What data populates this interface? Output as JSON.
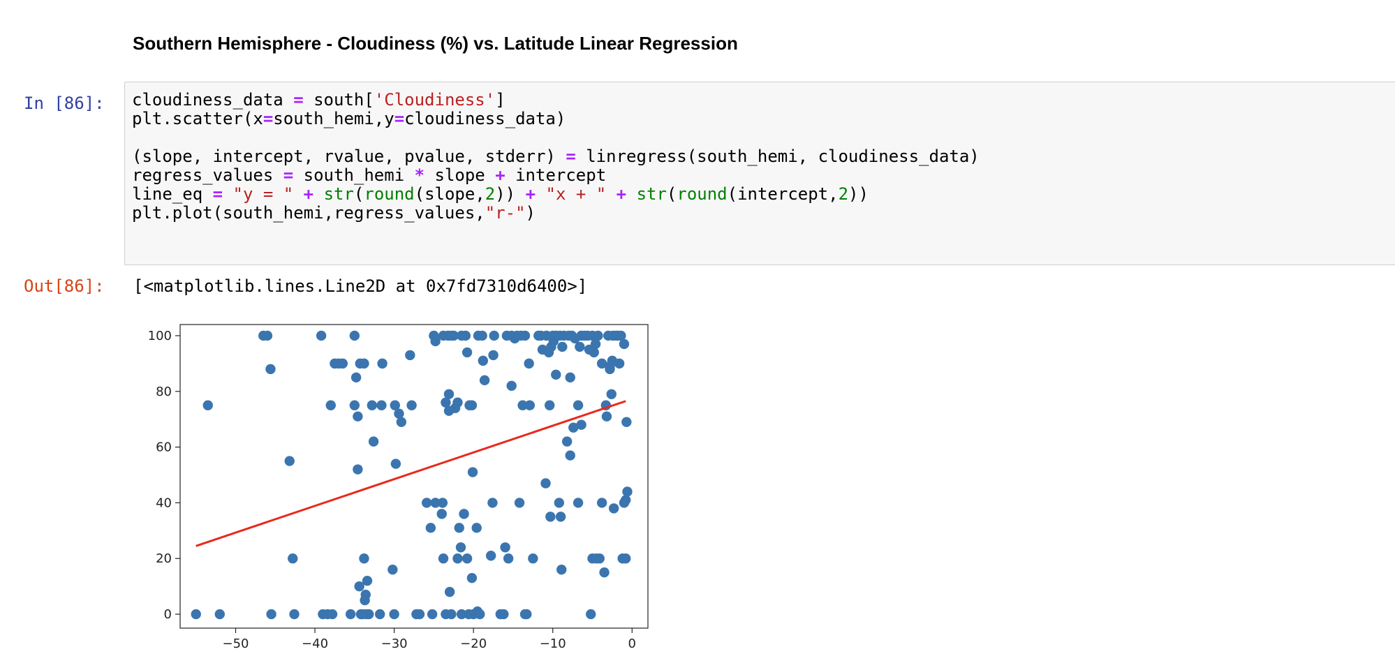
{
  "markdown": {
    "heading": "Southern Hemisphere - Cloudiness (%) vs. Latitude Linear Regression"
  },
  "input_cell": {
    "prompt": "In [86]:",
    "lines": [
      [
        {
          "t": "cloudiness_data ",
          "c": ""
        },
        {
          "t": "=",
          "c": "op"
        },
        {
          "t": " south[",
          "c": ""
        },
        {
          "t": "'Cloudiness'",
          "c": "str"
        },
        {
          "t": "]",
          "c": ""
        }
      ],
      [
        {
          "t": "plt.scatter(x",
          "c": ""
        },
        {
          "t": "=",
          "c": "op"
        },
        {
          "t": "south_hemi,y",
          "c": ""
        },
        {
          "t": "=",
          "c": "op"
        },
        {
          "t": "cloudiness_data)",
          "c": ""
        }
      ],
      [],
      [
        {
          "t": "(slope, intercept, rvalue, pvalue, stderr) ",
          "c": ""
        },
        {
          "t": "=",
          "c": "op"
        },
        {
          "t": " linregress(south_hemi, cloudiness_data)",
          "c": ""
        }
      ],
      [
        {
          "t": "regress_values ",
          "c": ""
        },
        {
          "t": "=",
          "c": "op"
        },
        {
          "t": " south_hemi ",
          "c": ""
        },
        {
          "t": "*",
          "c": "op"
        },
        {
          "t": " slope ",
          "c": ""
        },
        {
          "t": "+",
          "c": "op"
        },
        {
          "t": " intercept",
          "c": ""
        }
      ],
      [
        {
          "t": "line_eq ",
          "c": ""
        },
        {
          "t": "=",
          "c": "op"
        },
        {
          "t": " ",
          "c": ""
        },
        {
          "t": "\"y = \"",
          "c": "str"
        },
        {
          "t": " ",
          "c": ""
        },
        {
          "t": "+",
          "c": "op"
        },
        {
          "t": " ",
          "c": ""
        },
        {
          "t": "str",
          "c": "bi"
        },
        {
          "t": "(",
          "c": ""
        },
        {
          "t": "round",
          "c": "bi"
        },
        {
          "t": "(slope,",
          "c": ""
        },
        {
          "t": "2",
          "c": "num"
        },
        {
          "t": ")) ",
          "c": ""
        },
        {
          "t": "+",
          "c": "op"
        },
        {
          "t": " ",
          "c": ""
        },
        {
          "t": "\"x + \"",
          "c": "str"
        },
        {
          "t": " ",
          "c": ""
        },
        {
          "t": "+",
          "c": "op"
        },
        {
          "t": " ",
          "c": ""
        },
        {
          "t": "str",
          "c": "bi"
        },
        {
          "t": "(",
          "c": ""
        },
        {
          "t": "round",
          "c": "bi"
        },
        {
          "t": "(intercept,",
          "c": ""
        },
        {
          "t": "2",
          "c": "num"
        },
        {
          "t": "))",
          "c": ""
        }
      ],
      [
        {
          "t": "plt.plot(south_hemi,regress_values,",
          "c": ""
        },
        {
          "t": "\"r-\"",
          "c": "str"
        },
        {
          "t": ")",
          "c": ""
        }
      ]
    ]
  },
  "output_cell": {
    "prompt": "Out[86]:",
    "text": "[<matplotlib.lines.Line2D at 0x7fd7310d6400>]"
  },
  "colors": {
    "scatter": "#3b75af",
    "regression_line": "#e8291c"
  },
  "chart_data": {
    "type": "scatter",
    "title": "",
    "xlabel": "",
    "ylabel": "",
    "xlim": [
      -57,
      2
    ],
    "ylim": [
      -5,
      104
    ],
    "xticks": [
      -50,
      -40,
      -30,
      -20,
      -10,
      0
    ],
    "yticks": [
      0,
      20,
      40,
      60,
      80,
      100
    ],
    "grid": false,
    "series": [
      {
        "type": "scatter",
        "points": [
          [
            -55,
            0
          ],
          [
            -53.5,
            75
          ],
          [
            -52,
            0
          ],
          [
            -46.5,
            100
          ],
          [
            -46,
            100
          ],
          [
            -45.6,
            88
          ],
          [
            -45.5,
            0
          ],
          [
            -43.2,
            55
          ],
          [
            -42.8,
            20
          ],
          [
            -42.6,
            0
          ],
          [
            -39.2,
            100
          ],
          [
            -39,
            0
          ],
          [
            -38.4,
            0
          ],
          [
            -38,
            75
          ],
          [
            -37.8,
            0
          ],
          [
            -37.5,
            90
          ],
          [
            -37,
            90
          ],
          [
            -36.5,
            90
          ],
          [
            -35.5,
            0
          ],
          [
            -35,
            100
          ],
          [
            -35,
            75
          ],
          [
            -34.8,
            85
          ],
          [
            -34.6,
            52
          ],
          [
            -34.6,
            71
          ],
          [
            -34.4,
            10
          ],
          [
            -34.3,
            90
          ],
          [
            -34.2,
            0
          ],
          [
            -34,
            0
          ],
          [
            -33.8,
            90
          ],
          [
            -33.8,
            20
          ],
          [
            -33.7,
            5
          ],
          [
            -33.6,
            7
          ],
          [
            -33.5,
            0
          ],
          [
            -33.4,
            12
          ],
          [
            -33.2,
            0
          ],
          [
            -32.8,
            75
          ],
          [
            -32.6,
            62
          ],
          [
            -31.8,
            0
          ],
          [
            -31.6,
            75
          ],
          [
            -31.5,
            90
          ],
          [
            -30.2,
            16
          ],
          [
            -30,
            0
          ],
          [
            -29.8,
            54
          ],
          [
            -29.9,
            75
          ],
          [
            -29.4,
            72
          ],
          [
            -29.1,
            69
          ],
          [
            -28,
            93
          ],
          [
            -27.8,
            75
          ],
          [
            -27.2,
            0
          ],
          [
            -26.8,
            0
          ],
          [
            -25.9,
            40
          ],
          [
            -25.4,
            31
          ],
          [
            -25.2,
            0
          ],
          [
            -25,
            100
          ],
          [
            -24.8,
            98
          ],
          [
            -24.8,
            40
          ],
          [
            -24,
            36
          ],
          [
            -23.9,
            40
          ],
          [
            -23.8,
            20
          ],
          [
            -23.8,
            100
          ],
          [
            -23.5,
            76
          ],
          [
            -23.5,
            0
          ],
          [
            -23.2,
            100
          ],
          [
            -23.1,
            73
          ],
          [
            -23.1,
            79
          ],
          [
            -23,
            8
          ],
          [
            -22.8,
            0
          ],
          [
            -22.8,
            100
          ],
          [
            -22.5,
            100
          ],
          [
            -22.3,
            74
          ],
          [
            -22,
            76
          ],
          [
            -22,
            20
          ],
          [
            -21.8,
            31
          ],
          [
            -21.6,
            24
          ],
          [
            -21.5,
            100
          ],
          [
            -21.5,
            0
          ],
          [
            -21.2,
            36
          ],
          [
            -21,
            100
          ],
          [
            -20.8,
            94
          ],
          [
            -20.8,
            20
          ],
          [
            -20.6,
            0
          ],
          [
            -20.5,
            75
          ],
          [
            -20.2,
            75
          ],
          [
            -20.2,
            13
          ],
          [
            -20.1,
            51
          ],
          [
            -20,
            0
          ],
          [
            -19.6,
            31
          ],
          [
            -19.5,
            1
          ],
          [
            -19.4,
            100
          ],
          [
            -19.2,
            0
          ],
          [
            -18.9,
            100
          ],
          [
            -18.8,
            91
          ],
          [
            -18.6,
            84
          ],
          [
            -17.8,
            21
          ],
          [
            -17.6,
            40
          ],
          [
            -17.5,
            93
          ],
          [
            -17.4,
            100
          ],
          [
            -16.6,
            0
          ],
          [
            -16.2,
            0
          ],
          [
            -16,
            24
          ],
          [
            -15.8,
            100
          ],
          [
            -15.6,
            20
          ],
          [
            -15.2,
            82
          ],
          [
            -15.2,
            100
          ],
          [
            -14.8,
            99
          ],
          [
            -14.5,
            100
          ],
          [
            -14.2,
            40
          ],
          [
            -14,
            100
          ],
          [
            -13.8,
            75
          ],
          [
            -13.5,
            100
          ],
          [
            -13.5,
            0
          ],
          [
            -13.3,
            0
          ],
          [
            -13,
            90
          ],
          [
            -12.9,
            75
          ],
          [
            -12.5,
            20
          ],
          [
            -11.8,
            100
          ],
          [
            -11.5,
            100
          ],
          [
            -11.3,
            95
          ],
          [
            -10.9,
            47
          ],
          [
            -10.8,
            100
          ],
          [
            -10.5,
            94
          ],
          [
            -10.4,
            75
          ],
          [
            -10.3,
            35
          ],
          [
            -10.2,
            96
          ],
          [
            -10,
            100
          ],
          [
            -9.9,
            98
          ],
          [
            -9.6,
            86
          ],
          [
            -9.6,
            100
          ],
          [
            -9.2,
            40
          ],
          [
            -9.1,
            100
          ],
          [
            -9,
            35
          ],
          [
            -8.9,
            16
          ],
          [
            -8.8,
            96
          ],
          [
            -8.6,
            100
          ],
          [
            -8.2,
            62
          ],
          [
            -8,
            100
          ],
          [
            -7.8,
            85
          ],
          [
            -7.8,
            57
          ],
          [
            -7.6,
            100
          ],
          [
            -7.4,
            67
          ],
          [
            -7.2,
            99
          ],
          [
            -6.8,
            75
          ],
          [
            -6.8,
            40
          ],
          [
            -6.6,
            96
          ],
          [
            -6.4,
            68
          ],
          [
            -6.4,
            100
          ],
          [
            -6,
            100
          ],
          [
            -5.6,
            100
          ],
          [
            -5.4,
            95
          ],
          [
            -5.2,
            0
          ],
          [
            -5,
            100
          ],
          [
            -5,
            20
          ],
          [
            -4.8,
            94
          ],
          [
            -4.6,
            97
          ],
          [
            -4.5,
            20
          ],
          [
            -4.3,
            100
          ],
          [
            -4.1,
            20
          ],
          [
            -3.8,
            40
          ],
          [
            -3.8,
            90
          ],
          [
            -3.5,
            15
          ],
          [
            -3.3,
            75
          ],
          [
            -3.2,
            71
          ],
          [
            -3,
            100
          ],
          [
            -2.8,
            88
          ],
          [
            -2.8,
            89
          ],
          [
            -2.6,
            79
          ],
          [
            -2.5,
            91
          ],
          [
            -2.4,
            100
          ],
          [
            -2.3,
            38
          ],
          [
            -2,
            100
          ],
          [
            -1.8,
            100
          ],
          [
            -1.6,
            90
          ],
          [
            -1.4,
            100
          ],
          [
            -1.2,
            20
          ],
          [
            -1,
            40
          ],
          [
            -1,
            97
          ],
          [
            -0.8,
            20
          ],
          [
            -0.8,
            41
          ],
          [
            -0.7,
            69
          ],
          [
            -0.6,
            44
          ]
        ]
      },
      {
        "type": "line",
        "points": [
          [
            -55,
            24.5
          ],
          [
            -0.8,
            76.5
          ]
        ]
      }
    ]
  }
}
